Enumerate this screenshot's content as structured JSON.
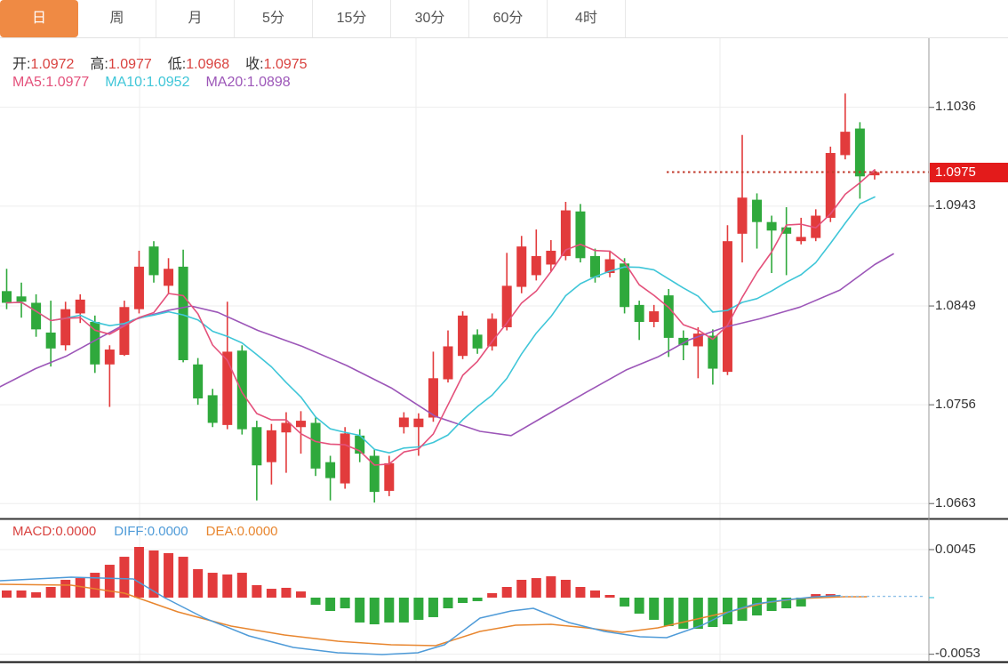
{
  "tabbar": {
    "active_bg": "#ef8a44",
    "active_text": "#ffffff",
    "tabs": [
      {
        "label": "日",
        "active": true
      },
      {
        "label": "周",
        "active": false
      },
      {
        "label": "月",
        "active": false
      },
      {
        "label": "5分",
        "active": false
      },
      {
        "label": "15分",
        "active": false
      },
      {
        "label": "30分",
        "active": false
      },
      {
        "label": "60分",
        "active": false
      },
      {
        "label": "4时",
        "active": false
      }
    ]
  },
  "legend": {
    "ohlc": {
      "label_color": "#333333",
      "value_color": "#d9423f",
      "items": [
        {
          "label": "开:",
          "value": "1.0972"
        },
        {
          "label": "高:",
          "value": "1.0977"
        },
        {
          "label": "低:",
          "value": "1.0968"
        },
        {
          "label": "收:",
          "value": "1.0975"
        }
      ]
    },
    "ma": {
      "items": [
        {
          "label": "MA5:",
          "value": "1.0977",
          "color": "#e4517b"
        },
        {
          "label": "MA10:",
          "value": "1.0952",
          "color": "#3fc6d8"
        },
        {
          "label": "MA20:",
          "value": "1.0898",
          "color": "#9c56b8"
        }
      ]
    },
    "macd": {
      "items": [
        {
          "label": "MACD:",
          "value": "0.0000",
          "color": "#d9423f"
        },
        {
          "label": "DIFF:",
          "value": "0.0000",
          "color": "#4f9bd8"
        },
        {
          "label": "DEA:",
          "value": "0.0000",
          "color": "#e8862f"
        }
      ]
    }
  },
  "badge": {
    "label": "1.0975",
    "price": 1.0975,
    "bg": "#e31b1b",
    "text_color": "#ffffff"
  },
  "chart_data": {
    "type": "candlestick",
    "columns": [
      "open",
      "close",
      "high",
      "low"
    ],
    "up_color": "#e23b3c",
    "down_color": "#2fa93c",
    "grid": true,
    "candles": [
      [
        1.0863,
        1.0852,
        1.0884,
        1.0846
      ],
      [
        1.0858,
        1.0853,
        1.0871,
        1.0838
      ],
      [
        1.0852,
        1.0827,
        1.086,
        1.082
      ],
      [
        1.0824,
        1.0809,
        1.0854,
        1.0792
      ],
      [
        1.0812,
        1.0846,
        1.0853,
        1.0807
      ],
      [
        1.0842,
        1.0855,
        1.086,
        1.0833
      ],
      [
        1.0834,
        1.0794,
        1.084,
        1.0786
      ],
      [
        1.0794,
        1.0808,
        1.0812,
        1.0754
      ],
      [
        1.0803,
        1.0848,
        1.0854,
        1.0802
      ],
      [
        1.0846,
        1.0886,
        1.0901,
        1.0842
      ],
      [
        1.0905,
        1.0878,
        1.091,
        1.0871
      ],
      [
        1.0868,
        1.0884,
        1.0894,
        1.0861
      ],
      [
        1.0886,
        1.0798,
        1.0902,
        1.0796
      ],
      [
        1.0794,
        1.0762,
        1.08,
        1.0756
      ],
      [
        1.0765,
        1.0739,
        1.0771,
        1.0735
      ],
      [
        1.0737,
        1.0806,
        1.0853,
        1.0733
      ],
      [
        1.0807,
        1.0733,
        1.0812,
        1.0728
      ],
      [
        1.0735,
        1.0699,
        1.0741,
        1.0666
      ],
      [
        1.0702,
        1.0732,
        1.0738,
        1.0681
      ],
      [
        1.073,
        1.0739,
        1.0749,
        1.0692
      ],
      [
        1.0735,
        1.0741,
        1.075,
        1.071
      ],
      [
        1.0739,
        1.0696,
        1.0744,
        1.0689
      ],
      [
        1.0702,
        1.0687,
        1.0708,
        1.0666
      ],
      [
        1.0682,
        1.0729,
        1.0735,
        1.0677
      ],
      [
        1.0727,
        1.071,
        1.0733,
        1.0702
      ],
      [
        1.0708,
        1.0674,
        1.0714,
        1.0664
      ],
      [
        1.0675,
        1.0701,
        1.0708,
        1.067
      ],
      [
        1.0735,
        1.0744,
        1.0749,
        1.0729
      ],
      [
        1.0735,
        1.0743,
        1.0748,
        1.0708
      ],
      [
        1.0744,
        1.0781,
        1.0806,
        1.074
      ],
      [
        1.078,
        1.0811,
        1.0826,
        1.0777
      ],
      [
        1.0802,
        1.084,
        1.0844,
        1.0799
      ],
      [
        1.0822,
        1.0809,
        1.0827,
        1.0804
      ],
      [
        1.0811,
        1.0837,
        1.0842,
        1.0807
      ],
      [
        1.0829,
        1.0868,
        1.0899,
        1.0826
      ],
      [
        1.0867,
        1.0905,
        1.0915,
        1.0861
      ],
      [
        1.0878,
        1.0896,
        1.0921,
        1.0873
      ],
      [
        1.0888,
        1.0901,
        1.0911,
        1.0881
      ],
      [
        1.0896,
        1.0939,
        1.0947,
        1.0892
      ],
      [
        1.0938,
        1.0894,
        1.0945,
        1.089
      ],
      [
        1.0896,
        1.0876,
        1.0903,
        1.0871
      ],
      [
        1.088,
        1.0893,
        1.0901,
        1.0876
      ],
      [
        1.0889,
        1.0848,
        1.0894,
        1.0842
      ],
      [
        1.085,
        1.0834,
        1.0854,
        1.0817
      ],
      [
        1.0834,
        1.0844,
        1.085,
        1.0829
      ],
      [
        1.0859,
        1.0819,
        1.0865,
        1.0801
      ],
      [
        1.0819,
        1.0812,
        1.0826,
        1.0798
      ],
      [
        1.0811,
        1.0823,
        1.0829,
        1.0781
      ],
      [
        1.0821,
        1.079,
        1.0827,
        1.0775
      ],
      [
        1.0787,
        1.091,
        1.0925,
        1.0784
      ],
      [
        1.0917,
        1.0951,
        1.101,
        1.089
      ],
      [
        1.0949,
        1.0928,
        1.0955,
        1.0903
      ],
      [
        1.0928,
        1.092,
        1.0934,
        1.088
      ],
      [
        1.0923,
        1.0917,
        1.0942,
        1.0878
      ],
      [
        1.091,
        1.0914,
        1.0932,
        1.0907
      ],
      [
        1.0913,
        1.0934,
        1.094,
        1.091
      ],
      [
        1.0932,
        1.0993,
        1.0999,
        1.0928
      ],
      [
        1.0991,
        1.1013,
        1.1049,
        1.0987
      ],
      [
        1.1016,
        1.0971,
        1.1022,
        1.095
      ],
      [
        1.0972,
        1.0975,
        1.0977,
        1.0968
      ]
    ],
    "ma_periods": [
      5,
      10,
      20
    ],
    "ma_colors": {
      "ma5": "#e4517b",
      "ma10": "#3fc6d8",
      "ma20": "#9c56b8"
    },
    "ma20_pts": [
      [
        0,
        1.0773
      ],
      [
        40,
        1.079
      ],
      [
        75,
        1.0802
      ],
      [
        110,
        1.0818
      ],
      [
        150,
        1.0836
      ],
      [
        190,
        1.0845
      ],
      [
        215,
        1.0849
      ],
      [
        245,
        1.0843
      ],
      [
        290,
        1.0826
      ],
      [
        340,
        1.0811
      ],
      [
        390,
        1.0793
      ],
      [
        440,
        1.0772
      ],
      [
        490,
        1.0745
      ],
      [
        540,
        1.0731
      ],
      [
        575,
        1.0727
      ],
      [
        610,
        1.0744
      ],
      [
        660,
        1.0768
      ],
      [
        705,
        1.0789
      ],
      [
        740,
        1.0801
      ],
      [
        775,
        1.0817
      ],
      [
        815,
        1.0829
      ],
      [
        855,
        1.0837
      ],
      [
        900,
        1.0848
      ],
      [
        945,
        1.0864
      ],
      [
        984,
        1.0888
      ],
      [
        1005,
        1.0898
      ]
    ],
    "price_axis": {
      "ticks": [
        "1.1036",
        "1.0943",
        "1.0849",
        "1.0756",
        "1.0663"
      ],
      "tick_prices": [
        1.1036,
        1.0943,
        1.0849,
        1.0756,
        1.0663
      ],
      "ylim": [
        1.0649,
        1.1101
      ]
    },
    "last_price": 1.0975,
    "last_price_line_color": "#c0392b",
    "macd": {
      "hist": [
        0.00067,
        0.00067,
        0.0005,
        0.001,
        0.00167,
        0.00183,
        0.00233,
        0.00308,
        0.00383,
        0.00475,
        0.00442,
        0.00417,
        0.00383,
        0.00267,
        0.00233,
        0.00217,
        0.00233,
        0.00117,
        0.00083,
        0.00092,
        0.00058,
        -0.00067,
        -0.00125,
        -0.001,
        -0.00233,
        -0.0025,
        -0.00233,
        -0.00233,
        -0.00208,
        -0.00183,
        -0.001,
        -0.0005,
        -0.00033,
        0.00042,
        0.001,
        0.00167,
        0.00183,
        0.002,
        0.00167,
        0.001,
        0.00067,
        0.00025,
        -0.00083,
        -0.0015,
        -0.00208,
        -0.00267,
        -0.00292,
        -0.00292,
        -0.00275,
        -0.0025,
        -0.00217,
        -0.00167,
        -0.00125,
        -0.001,
        -0.00083,
        0.00033,
        0.00033,
        0,
        0,
        0
      ],
      "diff_pts": [
        [
          0,
          0.00158
        ],
        [
          80,
          0.00192
        ],
        [
          150,
          0.00175
        ],
        [
          185,
          0
        ],
        [
          230,
          -0.00192
        ],
        [
          280,
          -0.00358
        ],
        [
          330,
          -0.00467
        ],
        [
          380,
          -0.00517
        ],
        [
          430,
          -0.00533
        ],
        [
          470,
          -0.00517
        ],
        [
          500,
          -0.00442
        ],
        [
          540,
          -0.00192
        ],
        [
          575,
          -0.00125
        ],
        [
          600,
          -0.001
        ],
        [
          640,
          -0.00233
        ],
        [
          680,
          -0.00317
        ],
        [
          720,
          -0.00367
        ],
        [
          750,
          -0.00375
        ],
        [
          790,
          -0.00258
        ],
        [
          820,
          -0.00133
        ],
        [
          850,
          -0.00058
        ],
        [
          880,
          -0.00025
        ],
        [
          915,
          6e-05
        ],
        [
          945,
          0.0002
        ]
      ],
      "dea_pts": [
        [
          0,
          0.00125
        ],
        [
          80,
          0.00117
        ],
        [
          140,
          0.00042
        ],
        [
          200,
          -0.00133
        ],
        [
          260,
          -0.00267
        ],
        [
          320,
          -0.0035
        ],
        [
          380,
          -0.00408
        ],
        [
          440,
          -0.00442
        ],
        [
          490,
          -0.0045
        ],
        [
          540,
          -0.00317
        ],
        [
          580,
          -0.00258
        ],
        [
          620,
          -0.0025
        ],
        [
          660,
          -0.00283
        ],
        [
          700,
          -0.00325
        ],
        [
          740,
          -0.00283
        ],
        [
          780,
          -0.00208
        ],
        [
          820,
          -0.00133
        ],
        [
          860,
          -0.0005
        ],
        [
          900,
          -8e-05
        ],
        [
          950,
          8e-05
        ],
        [
          975,
          8e-05
        ]
      ],
      "axis_ticks": [
        "0.0045",
        "-0.0053"
      ],
      "tick_values": [
        0.0045,
        -0.0053
      ],
      "ylim": [
        -0.006,
        0.00725
      ],
      "hist_up_color": "#e23b3c",
      "hist_down_color": "#2fa93c",
      "diff_color": "#4f9bd8",
      "dea_color": "#e8862f",
      "zero_dash_color": "#8fc1e8"
    }
  }
}
